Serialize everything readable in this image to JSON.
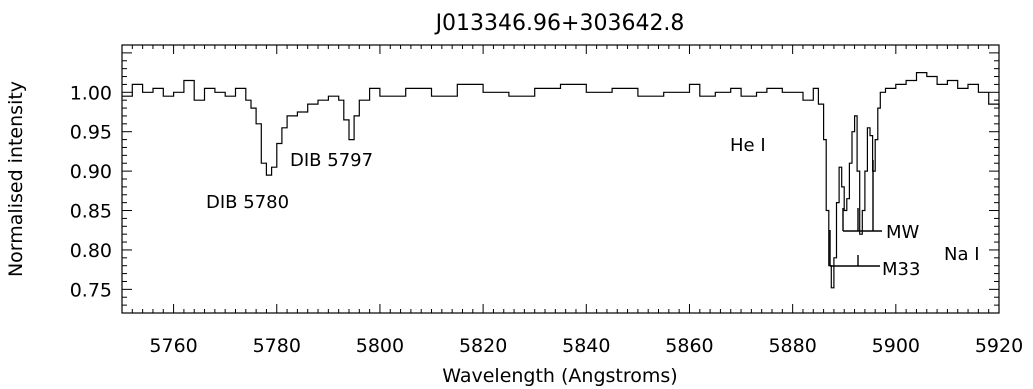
{
  "chart_data": {
    "type": "line",
    "title": "J013346.96+303642.8",
    "xlabel": "Wavelength (Angstroms)",
    "ylabel": "Normalised intensity",
    "xlim": [
      5750,
      5920
    ],
    "ylim": [
      0.72,
      1.06
    ],
    "x_ticks": [
      "5760",
      "5780",
      "5800",
      "5820",
      "5840",
      "5860",
      "5880",
      "5900",
      "5920"
    ],
    "y_ticks": [
      "0.75",
      "0.80",
      "0.85",
      "0.90",
      "0.95",
      "1.00"
    ],
    "series": [
      {
        "x": [
          5750,
          5752,
          5754,
          5756,
          5758,
          5760,
          5762,
          5764,
          5766,
          5768,
          5770,
          5772,
          5774,
          5775,
          5776,
          5777,
          5778,
          5779,
          5780,
          5781,
          5782,
          5784,
          5786,
          5788,
          5790,
          5792,
          5793,
          5794,
          5795,
          5796,
          5798,
          5800,
          5805,
          5810,
          5815,
          5820,
          5825,
          5830,
          5835,
          5840,
          5845,
          5850,
          5855,
          5860,
          5862,
          5865,
          5868,
          5870,
          5873,
          5875,
          5878,
          5880,
          5882,
          5884,
          5885,
          5886,
          5886.5,
          5887,
          5887.5,
          5888,
          5888.5,
          5889,
          5889.5,
          5890,
          5890.5,
          5891,
          5891.5,
          5892,
          5892.5,
          5893,
          5893.5,
          5894,
          5894.5,
          5895,
          5895.5,
          5896,
          5896.5,
          5897,
          5898,
          5900,
          5902,
          5904,
          5906,
          5908,
          5910,
          5912,
          5914,
          5916,
          5918,
          5920
        ],
        "y": [
          0.995,
          1.01,
          1.0,
          1.005,
          0.995,
          1.0,
          1.015,
          0.99,
          1.005,
          1.0,
          0.995,
          1.005,
          0.99,
          0.98,
          0.96,
          0.91,
          0.895,
          0.905,
          0.935,
          0.955,
          0.97,
          0.975,
          0.985,
          0.99,
          0.995,
          0.99,
          0.965,
          0.94,
          0.97,
          0.99,
          1.005,
          0.995,
          1.005,
          0.995,
          1.01,
          1.0,
          0.995,
          1.005,
          1.01,
          1.0,
          1.005,
          0.995,
          1.0,
          1.01,
          0.995,
          1.0,
          1.005,
          0.995,
          1.0,
          1.005,
          1.0,
          1.0,
          0.99,
          1.005,
          0.985,
          0.94,
          0.85,
          0.78,
          0.752,
          0.79,
          0.86,
          0.905,
          0.88,
          0.85,
          0.865,
          0.91,
          0.95,
          0.97,
          0.9,
          0.82,
          0.85,
          0.9,
          0.955,
          0.945,
          0.9,
          0.94,
          0.98,
          1.0,
          1.005,
          1.01,
          1.015,
          1.025,
          1.02,
          1.01,
          1.015,
          1.005,
          1.01,
          1.0,
          0.985,
          0.98
        ]
      }
    ],
    "annotations": [
      "DIB 5780",
      "DIB 5797",
      "He I",
      "Na I",
      "MW",
      "M33"
    ]
  }
}
